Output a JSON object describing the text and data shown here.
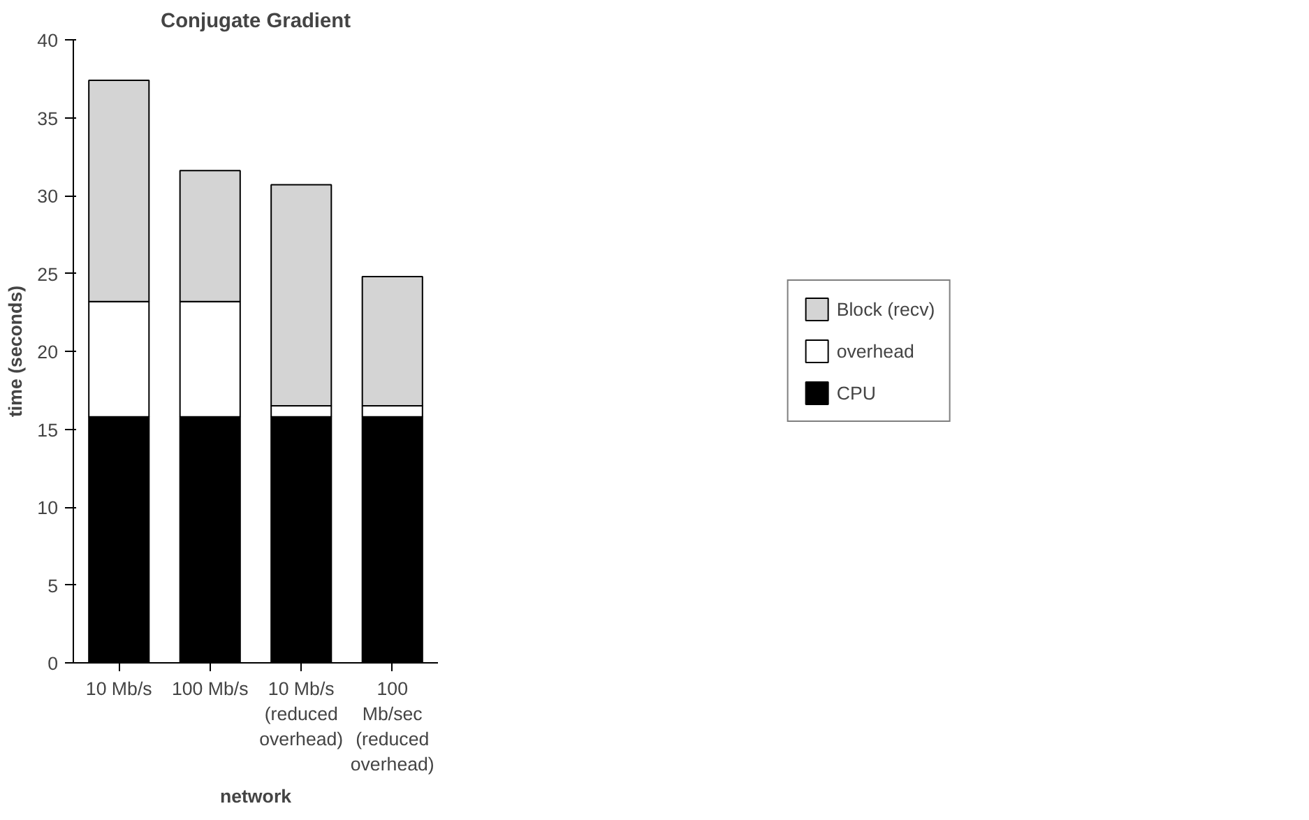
{
  "chart_data": {
    "type": "bar",
    "stacked": true,
    "title": "Conjugate Gradient",
    "xlabel": "network",
    "ylabel": "time (seconds)",
    "categories": [
      "10 Mb/s",
      "100 Mb/s",
      "10 Mb/s\n(reduced\noverhead)",
      "100\nMb/sec\n(reduced\noverhead)"
    ],
    "series": [
      {
        "name": "CPU",
        "color": "#000000",
        "values": [
          15.8,
          15.8,
          15.8,
          15.8
        ]
      },
      {
        "name": "overhead",
        "color": "#ffffff",
        "values": [
          7.4,
          7.4,
          0.7,
          0.7
        ]
      },
      {
        "name": "Block (recv)",
        "color": "#d4d4d4",
        "values": [
          14.2,
          8.4,
          14.2,
          8.3
        ]
      }
    ],
    "ylim": [
      0,
      40
    ],
    "yticks": [
      0,
      5,
      10,
      15,
      20,
      25,
      30,
      35,
      40
    ],
    "grid": false,
    "legend": "right"
  }
}
